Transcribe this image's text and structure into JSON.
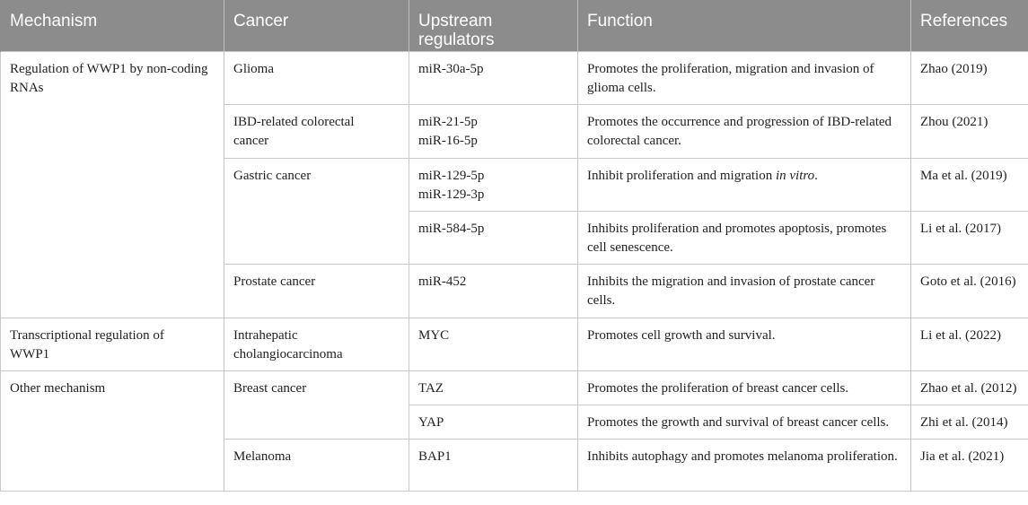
{
  "headers": [
    "Mechanism",
    "Cancer",
    "Upstream regulators",
    "Function",
    "References"
  ],
  "rows": {
    "r1": {
      "mechanism": "Regulation of WWP1 by non-coding RNAs",
      "cancer": "Glioma",
      "regulators": [
        "miR-30a-5p"
      ],
      "function": "Promotes the proliferation, migration and invasion of glioma cells.",
      "reference": "Zhao (2019)"
    },
    "r2": {
      "cancer": "IBD-related colorectal cancer",
      "regulators": [
        "miR-21-5p",
        "miR-16-5p"
      ],
      "function": "Promotes the occurrence and progression of IBD-related colorectal cancer.",
      "reference": "Zhou (2021)"
    },
    "r3": {
      "cancer": "Gastric cancer",
      "regulators": [
        "miR-129-5p",
        "miR-129-3p"
      ],
      "function_prefix": "Inhibit proliferation and migration ",
      "function_italic": "in vitro",
      "function_suffix": ".",
      "reference": "Ma et al. (2019)"
    },
    "r4": {
      "regulators": [
        "miR-584-5p"
      ],
      "function": "Inhibits proliferation and promotes apoptosis, promotes cell senescence.",
      "reference": "Li et al. (2017)"
    },
    "r5": {
      "cancer": "Prostate cancer",
      "regulators": [
        "miR-452"
      ],
      "function": "Inhibits the migration and invasion of prostate cancer cells.",
      "reference": "Goto et al. (2016)"
    },
    "r6": {
      "mechanism": "Transcriptional regulation of WWP1",
      "cancer": "Intrahepatic cholangiocarcinoma",
      "regulators": [
        "MYC"
      ],
      "function": "Promotes cell growth and survival.",
      "reference": "Li et al. (2022)"
    },
    "r7": {
      "mechanism": "Other mechanism",
      "cancer": "Breast cancer",
      "regulators": [
        "TAZ"
      ],
      "function": "Promotes the proliferation of breast cancer cells.",
      "reference": "Zhao et al. (2012)"
    },
    "r8": {
      "regulators": [
        "YAP"
      ],
      "function": "Promotes the growth and survival of breast cancer cells.",
      "reference": "Zhi et al. (2014)"
    },
    "r9": {
      "cancer": "Melanoma",
      "regulators": [
        "BAP1"
      ],
      "function": "Inhibits autophagy and promotes melanoma proliferation.",
      "reference": "Jia et al. (2021)"
    }
  }
}
